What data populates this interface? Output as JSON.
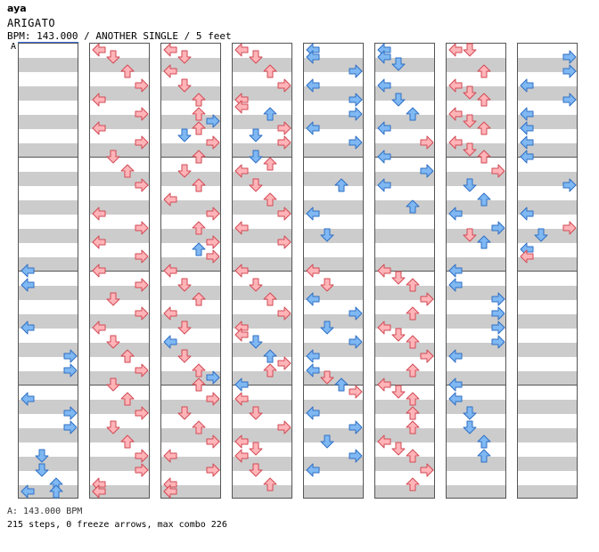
{
  "header": {
    "author": "aya",
    "title": "ARIGATO",
    "meta": "BPM: 143.000 / ANOTHER SINGLE / 5 feet",
    "segment_label": "A"
  },
  "footer": {
    "bpm_line": "A: 143.000 BPM",
    "stats": "215 steps, 0 freeze arrows, max combo 226"
  },
  "colors": {
    "blue": "#7fb8f2",
    "blue_stroke": "#2f6fc4",
    "red": "#ffb4b8",
    "red_stroke": "#d24a55"
  },
  "chart_data": {
    "type": "step-chart",
    "columns": 8,
    "beats_per_column": 16,
    "lanes": [
      "left",
      "down",
      "up",
      "right"
    ],
    "notes": [
      [
        [
          8,
          "L",
          "b"
        ],
        [
          8.5,
          "L",
          "b"
        ],
        [
          10,
          "L",
          "b"
        ],
        [
          11,
          "R",
          "b"
        ],
        [
          11.5,
          "R",
          "b"
        ],
        [
          12.5,
          "L",
          "b"
        ],
        [
          13,
          "R",
          "b"
        ],
        [
          13.5,
          "R",
          "b"
        ],
        [
          14.5,
          "D",
          "b"
        ],
        [
          15,
          "D",
          "b"
        ],
        [
          15.5,
          "U",
          "b"
        ],
        [
          16,
          "U",
          "b"
        ],
        [
          16.5,
          "L",
          "b"
        ]
      ],
      [
        [
          0,
          "L",
          "r"
        ],
        [
          0.5,
          "D",
          "r"
        ],
        [
          1,
          "U",
          "r"
        ],
        [
          1.5,
          "R",
          "r"
        ],
        [
          2,
          "L",
          "r"
        ],
        [
          2.5,
          "R",
          "r"
        ],
        [
          3,
          "L",
          "r"
        ],
        [
          3.5,
          "R",
          "r"
        ],
        [
          4,
          "D",
          "r"
        ],
        [
          4.5,
          "U",
          "r"
        ],
        [
          5,
          "R",
          "r"
        ],
        [
          6,
          "L",
          "r"
        ],
        [
          6.5,
          "R",
          "r"
        ],
        [
          7,
          "L",
          "r"
        ],
        [
          7.5,
          "R",
          "r"
        ],
        [
          8,
          "L",
          "r"
        ],
        [
          8.5,
          "R",
          "r"
        ],
        [
          9,
          "D",
          "r"
        ],
        [
          9.5,
          "R",
          "r"
        ],
        [
          10,
          "L",
          "r"
        ],
        [
          10.5,
          "D",
          "r"
        ],
        [
          11,
          "U",
          "r"
        ],
        [
          11.5,
          "R",
          "r"
        ],
        [
          12,
          "D",
          "r"
        ],
        [
          12.5,
          "U",
          "r"
        ],
        [
          13,
          "R",
          "r"
        ],
        [
          13.5,
          "D",
          "r"
        ],
        [
          14,
          "U",
          "r"
        ],
        [
          14.5,
          "R",
          "r"
        ],
        [
          15,
          "R",
          "r"
        ],
        [
          15.5,
          "L",
          "r"
        ],
        [
          16,
          "L",
          "r"
        ],
        [
          16.5,
          "L",
          "r"
        ]
      ],
      [
        [
          0,
          "L",
          "r"
        ],
        [
          0.5,
          "D",
          "r"
        ],
        [
          1,
          "L",
          "r"
        ],
        [
          1.5,
          "D",
          "r"
        ],
        [
          2,
          "U",
          "r"
        ],
        [
          2.5,
          "U",
          "r"
        ],
        [
          2.75,
          "R",
          "b"
        ],
        [
          3,
          "U",
          "r"
        ],
        [
          3.25,
          "D",
          "b"
        ],
        [
          3.5,
          "R",
          "r"
        ],
        [
          4,
          "U",
          "r"
        ],
        [
          4.5,
          "D",
          "r"
        ],
        [
          5,
          "U",
          "r"
        ],
        [
          5.5,
          "L",
          "r"
        ],
        [
          6,
          "R",
          "r"
        ],
        [
          6.5,
          "U",
          "r"
        ],
        [
          7,
          "R",
          "r"
        ],
        [
          7.25,
          "U",
          "b"
        ],
        [
          7.5,
          "R",
          "r"
        ],
        [
          8,
          "L",
          "r"
        ],
        [
          8.5,
          "D",
          "r"
        ],
        [
          9,
          "U",
          "r"
        ],
        [
          9.5,
          "L",
          "r"
        ],
        [
          10,
          "D",
          "r"
        ],
        [
          10.5,
          "L",
          "b"
        ],
        [
          11,
          "D",
          "r"
        ],
        [
          11.5,
          "U",
          "r"
        ],
        [
          11.75,
          "R",
          "b"
        ],
        [
          12,
          "U",
          "r"
        ],
        [
          12.5,
          "R",
          "r"
        ],
        [
          13,
          "D",
          "r"
        ],
        [
          13.5,
          "U",
          "r"
        ],
        [
          14,
          "R",
          "r"
        ],
        [
          14.5,
          "L",
          "r"
        ],
        [
          15,
          "R",
          "r"
        ],
        [
          15.5,
          "L",
          "r"
        ],
        [
          16,
          "L",
          "r"
        ],
        [
          16.5,
          "L",
          "r"
        ]
      ],
      [
        [
          0,
          "L",
          "r"
        ],
        [
          0.5,
          "D",
          "r"
        ],
        [
          1,
          "U",
          "r"
        ],
        [
          1.5,
          "R",
          "r"
        ],
        [
          2,
          "L",
          "r"
        ],
        [
          2.25,
          "L",
          "r"
        ],
        [
          2.5,
          "U",
          "b"
        ],
        [
          3,
          "R",
          "r"
        ],
        [
          3.25,
          "D",
          "b"
        ],
        [
          3.5,
          "R",
          "r"
        ],
        [
          4,
          "D",
          "b"
        ],
        [
          4.25,
          "U",
          "r"
        ],
        [
          4.5,
          "L",
          "r"
        ],
        [
          5,
          "D",
          "r"
        ],
        [
          5.5,
          "U",
          "r"
        ],
        [
          6,
          "R",
          "r"
        ],
        [
          6.5,
          "L",
          "r"
        ],
        [
          7,
          "R",
          "r"
        ],
        [
          8,
          "L",
          "r"
        ],
        [
          8.5,
          "D",
          "r"
        ],
        [
          9,
          "U",
          "r"
        ],
        [
          9.5,
          "R",
          "r"
        ],
        [
          10,
          "L",
          "r"
        ],
        [
          10.25,
          "L",
          "r"
        ],
        [
          10.5,
          "D",
          "b"
        ],
        [
          11,
          "U",
          "b"
        ],
        [
          11.25,
          "R",
          "r"
        ],
        [
          11.5,
          "U",
          "r"
        ],
        [
          12,
          "L",
          "b"
        ],
        [
          12.5,
          "L",
          "r"
        ],
        [
          13,
          "D",
          "r"
        ],
        [
          13.5,
          "R",
          "r"
        ],
        [
          14,
          "L",
          "r"
        ],
        [
          14.25,
          "D",
          "r"
        ],
        [
          14.5,
          "L",
          "r"
        ],
        [
          15,
          "D",
          "r"
        ],
        [
          15.5,
          "U",
          "r"
        ]
      ],
      [
        [
          0,
          "L",
          "b"
        ],
        [
          0.5,
          "L",
          "b"
        ],
        [
          1,
          "R",
          "b"
        ],
        [
          1.5,
          "L",
          "b"
        ],
        [
          2,
          "R",
          "b"
        ],
        [
          2.5,
          "R",
          "b"
        ],
        [
          3,
          "L",
          "b"
        ],
        [
          3.5,
          "R",
          "b"
        ],
        [
          5,
          "U",
          "b"
        ],
        [
          6,
          "L",
          "b"
        ],
        [
          6.75,
          "D",
          "b"
        ],
        [
          8,
          "L",
          "r"
        ],
        [
          8.5,
          "D",
          "r"
        ],
        [
          9,
          "L",
          "b"
        ],
        [
          9.5,
          "R",
          "b"
        ],
        [
          10,
          "D",
          "b"
        ],
        [
          10.5,
          "R",
          "b"
        ],
        [
          11,
          "L",
          "b"
        ],
        [
          11.5,
          "L",
          "b"
        ],
        [
          11.75,
          "D",
          "r"
        ],
        [
          12,
          "U",
          "b"
        ],
        [
          12.25,
          "R",
          "r"
        ],
        [
          13,
          "L",
          "b"
        ],
        [
          13.5,
          "R",
          "b"
        ],
        [
          14,
          "D",
          "b"
        ],
        [
          14.5,
          "R",
          "b"
        ],
        [
          15,
          "L",
          "b"
        ]
      ],
      [
        [
          0,
          "L",
          "b"
        ],
        [
          0.5,
          "L",
          "b"
        ],
        [
          0.75,
          "D",
          "b"
        ],
        [
          1.5,
          "L",
          "b"
        ],
        [
          2,
          "D",
          "b"
        ],
        [
          2.5,
          "U",
          "b"
        ],
        [
          3,
          "L",
          "b"
        ],
        [
          3.5,
          "R",
          "r"
        ],
        [
          4,
          "L",
          "b"
        ],
        [
          4.5,
          "R",
          "b"
        ],
        [
          5,
          "L",
          "b"
        ],
        [
          5.75,
          "U",
          "b"
        ],
        [
          8,
          "L",
          "r"
        ],
        [
          8.25,
          "D",
          "r"
        ],
        [
          8.5,
          "U",
          "r"
        ],
        [
          9,
          "R",
          "r"
        ],
        [
          9.5,
          "U",
          "r"
        ],
        [
          10,
          "L",
          "r"
        ],
        [
          10.25,
          "D",
          "r"
        ],
        [
          10.5,
          "U",
          "r"
        ],
        [
          11,
          "R",
          "r"
        ],
        [
          11.5,
          "U",
          "r"
        ],
        [
          12,
          "L",
          "r"
        ],
        [
          12.25,
          "D",
          "r"
        ],
        [
          12.5,
          "U",
          "r"
        ],
        [
          13,
          "U",
          "r"
        ],
        [
          13.5,
          "U",
          "r"
        ],
        [
          14,
          "L",
          "r"
        ],
        [
          14.25,
          "D",
          "r"
        ],
        [
          14.5,
          "U",
          "r"
        ],
        [
          15,
          "R",
          "r"
        ],
        [
          15.5,
          "U",
          "r"
        ]
      ],
      [
        [
          0,
          "L",
          "r"
        ],
        [
          0.25,
          "D",
          "r"
        ],
        [
          1,
          "U",
          "r"
        ],
        [
          1.5,
          "L",
          "r"
        ],
        [
          1.75,
          "D",
          "r"
        ],
        [
          2,
          "U",
          "r"
        ],
        [
          2.5,
          "L",
          "r"
        ],
        [
          2.75,
          "D",
          "r"
        ],
        [
          3,
          "U",
          "r"
        ],
        [
          3.5,
          "L",
          "r"
        ],
        [
          3.75,
          "D",
          "r"
        ],
        [
          4,
          "U",
          "r"
        ],
        [
          4.5,
          "R",
          "r"
        ],
        [
          5,
          "D",
          "b"
        ],
        [
          5.5,
          "U",
          "b"
        ],
        [
          6,
          "L",
          "b"
        ],
        [
          6.5,
          "R",
          "b"
        ],
        [
          6.75,
          "D",
          "r"
        ],
        [
          7,
          "U",
          "b"
        ],
        [
          8,
          "L",
          "b"
        ],
        [
          8.5,
          "L",
          "b"
        ],
        [
          9,
          "R",
          "b"
        ],
        [
          9.5,
          "R",
          "b"
        ],
        [
          10,
          "R",
          "b"
        ],
        [
          10.5,
          "R",
          "b"
        ],
        [
          11,
          "L",
          "b"
        ],
        [
          12,
          "L",
          "b"
        ],
        [
          12.5,
          "L",
          "b"
        ],
        [
          13,
          "D",
          "b"
        ],
        [
          13.5,
          "D",
          "b"
        ],
        [
          14,
          "U",
          "b"
        ],
        [
          14.5,
          "U",
          "b"
        ]
      ],
      [
        [
          0.5,
          "R",
          "b"
        ],
        [
          1,
          "R",
          "b"
        ],
        [
          1.5,
          "L",
          "b"
        ],
        [
          2,
          "R",
          "b"
        ],
        [
          2.5,
          "L",
          "b"
        ],
        [
          3,
          "L",
          "b"
        ],
        [
          3.5,
          "L",
          "b"
        ],
        [
          4,
          "L",
          "b"
        ],
        [
          5,
          "R",
          "b"
        ],
        [
          6,
          "L",
          "b"
        ],
        [
          6.5,
          "R",
          "r"
        ],
        [
          6.75,
          "D",
          "b"
        ],
        [
          7.25,
          "L",
          "b"
        ],
        [
          7.5,
          "L",
          "r"
        ]
      ]
    ]
  }
}
